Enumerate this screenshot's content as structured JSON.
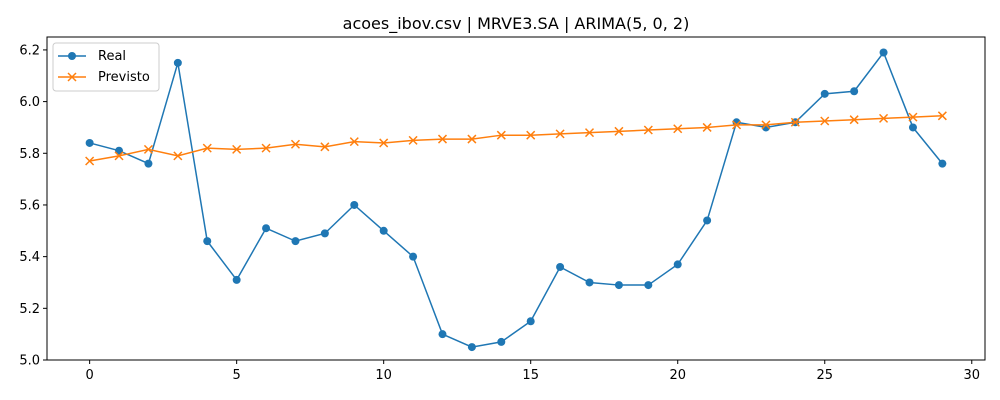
{
  "chart_data": {
    "type": "line",
    "title": "acoes_ibov.csv | MRVE3.SA | ARIMA(5, 0, 2)",
    "xlabel": "",
    "ylabel": "",
    "xlim": [
      -1.45,
      30.45
    ],
    "ylim": [
      5.0,
      6.25
    ],
    "x_ticks": [
      0,
      5,
      10,
      15,
      20,
      25,
      30
    ],
    "y_ticks": [
      5.0,
      5.2,
      5.4,
      5.6,
      5.8,
      6.0,
      6.2
    ],
    "x_tick_labels": [
      "0",
      "5",
      "10",
      "15",
      "20",
      "25",
      "30"
    ],
    "y_tick_labels": [
      "5.0",
      "5.2",
      "5.4",
      "5.6",
      "5.8",
      "6.0",
      "6.2"
    ],
    "grid": false,
    "legend_position": "top-left",
    "x": [
      0,
      1,
      2,
      3,
      4,
      5,
      6,
      7,
      8,
      9,
      10,
      11,
      12,
      13,
      14,
      15,
      16,
      17,
      18,
      19,
      20,
      21,
      22,
      23,
      24,
      25,
      26,
      27,
      28,
      29
    ],
    "series": [
      {
        "name": "Real",
        "color": "#1f77b4",
        "marker": "circle",
        "values": [
          5.84,
          5.81,
          5.76,
          6.15,
          5.46,
          5.31,
          5.51,
          5.46,
          5.49,
          5.6,
          5.5,
          5.4,
          5.1,
          5.05,
          5.07,
          5.15,
          5.36,
          5.3,
          5.29,
          5.29,
          5.37,
          5.54,
          5.92,
          5.9,
          5.92,
          6.03,
          6.04,
          6.19,
          5.9,
          5.76
        ]
      },
      {
        "name": "Previsto",
        "color": "#ff7f0e",
        "marker": "x",
        "values": [
          5.77,
          5.79,
          5.815,
          5.79,
          5.82,
          5.815,
          5.82,
          5.835,
          5.825,
          5.845,
          5.84,
          5.85,
          5.855,
          5.855,
          5.87,
          5.87,
          5.875,
          5.88,
          5.885,
          5.89,
          5.895,
          5.9,
          5.91,
          5.91,
          5.92,
          5.925,
          5.93,
          5.935,
          5.94,
          5.945
        ]
      }
    ]
  }
}
